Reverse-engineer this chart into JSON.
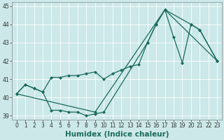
{
  "xlabel": "Humidex (Indice chaleur)",
  "background_color": "#cce8e8",
  "grid_color": "#ffffff",
  "line_color": "#1a6b5a",
  "line_a_x": [
    0,
    1,
    2,
    3,
    4,
    5,
    6,
    7,
    8,
    9,
    10,
    15,
    16,
    17,
    23
  ],
  "line_a_y": [
    40.2,
    40.7,
    40.5,
    40.3,
    39.3,
    39.3,
    39.2,
    39.2,
    39.0,
    39.1,
    39.2,
    43.0,
    44.0,
    44.8,
    42.0
  ],
  "line_b_x": [
    0,
    1,
    2,
    3,
    4,
    5,
    6,
    7,
    8,
    9,
    10,
    11,
    12,
    13,
    14,
    15,
    16,
    17,
    18,
    19,
    20,
    21,
    23
  ],
  "line_b_y": [
    40.2,
    40.7,
    40.5,
    40.3,
    41.1,
    41.1,
    41.2,
    41.2,
    41.3,
    41.4,
    41.0,
    41.3,
    41.5,
    41.7,
    41.8,
    43.0,
    44.0,
    44.8,
    43.3,
    41.9,
    44.0,
    43.7,
    42.0
  ],
  "line_c_x": [
    0,
    9,
    17,
    20,
    21,
    23
  ],
  "line_c_y": [
    40.2,
    39.2,
    44.8,
    44.0,
    43.7,
    42.0
  ],
  "ylim": [
    38.8,
    45.2
  ],
  "xlim": [
    -0.5,
    23.5
  ],
  "yticks": [
    39,
    40,
    41,
    42,
    43,
    44,
    45
  ],
  "xticks": [
    0,
    1,
    2,
    3,
    4,
    5,
    6,
    7,
    8,
    9,
    10,
    11,
    12,
    13,
    14,
    15,
    16,
    17,
    18,
    19,
    20,
    21,
    22,
    23
  ],
  "xtick_labels": [
    "0",
    "1",
    "2",
    "3",
    "4",
    "5",
    "6",
    "7",
    "8",
    "9",
    "10",
    "11",
    "12",
    "13",
    "14",
    "15",
    "16",
    "17",
    "18",
    "19",
    "20",
    "21",
    "22",
    "23"
  ],
  "markersize": 2.5,
  "linewidth": 0.9,
  "fontsize_ticks": 5.5,
  "fontsize_xlabel": 7.5
}
